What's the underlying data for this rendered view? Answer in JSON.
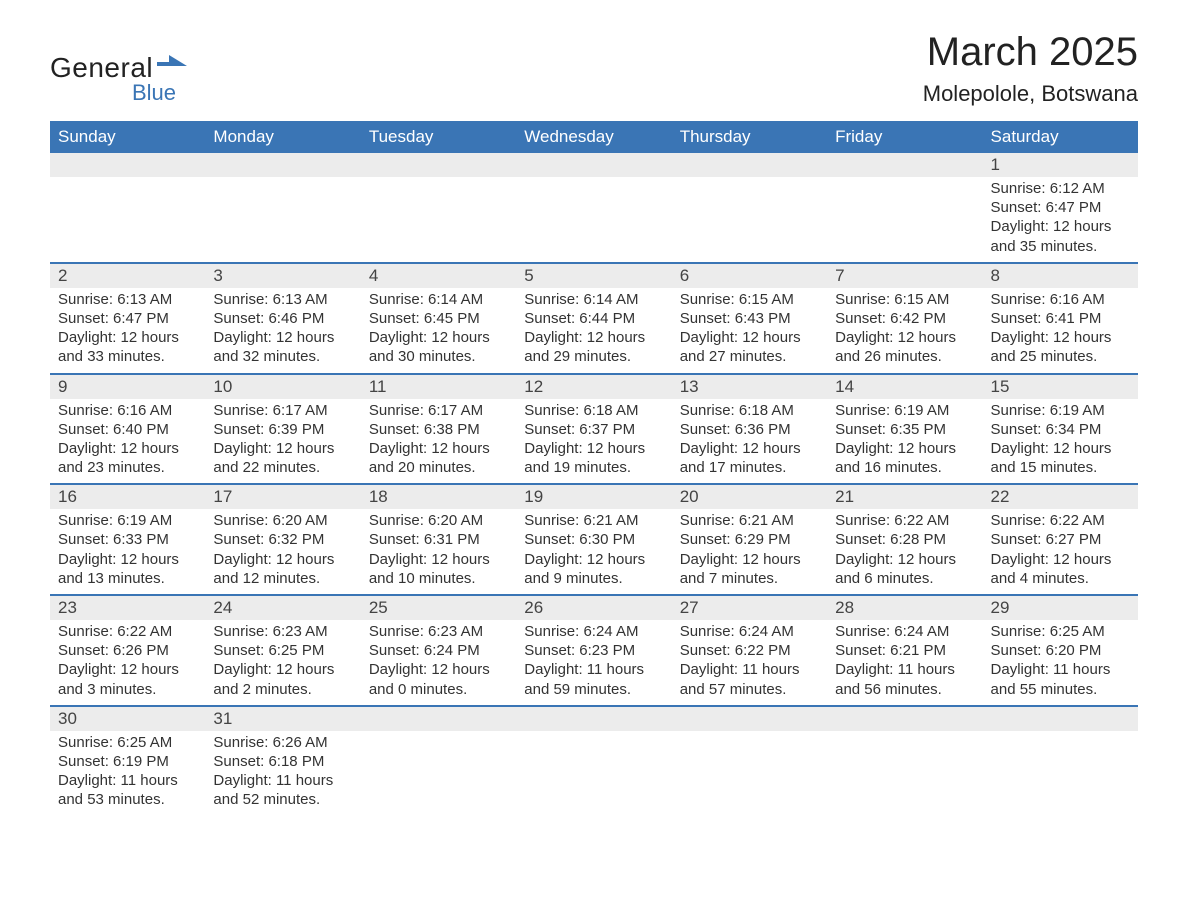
{
  "brand": {
    "line1": "General",
    "line2": "Blue",
    "flag_color": "#3a75b5"
  },
  "title": "March 2025",
  "location": "Molepolole, Botswana",
  "colors": {
    "header_bg": "#3a75b5",
    "header_fg": "#ffffff",
    "row_divider": "#3a75b5",
    "daynum_bg": "#ececec",
    "text": "#333333",
    "background": "#ffffff"
  },
  "typography": {
    "title_fontsize": 40,
    "location_fontsize": 22,
    "dow_fontsize": 17,
    "daynum_fontsize": 17,
    "body_fontsize": 15
  },
  "days_of_week": [
    "Sunday",
    "Monday",
    "Tuesday",
    "Wednesday",
    "Thursday",
    "Friday",
    "Saturday"
  ],
  "weeks": [
    [
      null,
      null,
      null,
      null,
      null,
      null,
      {
        "n": "1",
        "sunrise": "Sunrise: 6:12 AM",
        "sunset": "Sunset: 6:47 PM",
        "dl1": "Daylight: 12 hours",
        "dl2": "and 35 minutes."
      }
    ],
    [
      {
        "n": "2",
        "sunrise": "Sunrise: 6:13 AM",
        "sunset": "Sunset: 6:47 PM",
        "dl1": "Daylight: 12 hours",
        "dl2": "and 33 minutes."
      },
      {
        "n": "3",
        "sunrise": "Sunrise: 6:13 AM",
        "sunset": "Sunset: 6:46 PM",
        "dl1": "Daylight: 12 hours",
        "dl2": "and 32 minutes."
      },
      {
        "n": "4",
        "sunrise": "Sunrise: 6:14 AM",
        "sunset": "Sunset: 6:45 PM",
        "dl1": "Daylight: 12 hours",
        "dl2": "and 30 minutes."
      },
      {
        "n": "5",
        "sunrise": "Sunrise: 6:14 AM",
        "sunset": "Sunset: 6:44 PM",
        "dl1": "Daylight: 12 hours",
        "dl2": "and 29 minutes."
      },
      {
        "n": "6",
        "sunrise": "Sunrise: 6:15 AM",
        "sunset": "Sunset: 6:43 PM",
        "dl1": "Daylight: 12 hours",
        "dl2": "and 27 minutes."
      },
      {
        "n": "7",
        "sunrise": "Sunrise: 6:15 AM",
        "sunset": "Sunset: 6:42 PM",
        "dl1": "Daylight: 12 hours",
        "dl2": "and 26 minutes."
      },
      {
        "n": "8",
        "sunrise": "Sunrise: 6:16 AM",
        "sunset": "Sunset: 6:41 PM",
        "dl1": "Daylight: 12 hours",
        "dl2": "and 25 minutes."
      }
    ],
    [
      {
        "n": "9",
        "sunrise": "Sunrise: 6:16 AM",
        "sunset": "Sunset: 6:40 PM",
        "dl1": "Daylight: 12 hours",
        "dl2": "and 23 minutes."
      },
      {
        "n": "10",
        "sunrise": "Sunrise: 6:17 AM",
        "sunset": "Sunset: 6:39 PM",
        "dl1": "Daylight: 12 hours",
        "dl2": "and 22 minutes."
      },
      {
        "n": "11",
        "sunrise": "Sunrise: 6:17 AM",
        "sunset": "Sunset: 6:38 PM",
        "dl1": "Daylight: 12 hours",
        "dl2": "and 20 minutes."
      },
      {
        "n": "12",
        "sunrise": "Sunrise: 6:18 AM",
        "sunset": "Sunset: 6:37 PM",
        "dl1": "Daylight: 12 hours",
        "dl2": "and 19 minutes."
      },
      {
        "n": "13",
        "sunrise": "Sunrise: 6:18 AM",
        "sunset": "Sunset: 6:36 PM",
        "dl1": "Daylight: 12 hours",
        "dl2": "and 17 minutes."
      },
      {
        "n": "14",
        "sunrise": "Sunrise: 6:19 AM",
        "sunset": "Sunset: 6:35 PM",
        "dl1": "Daylight: 12 hours",
        "dl2": "and 16 minutes."
      },
      {
        "n": "15",
        "sunrise": "Sunrise: 6:19 AM",
        "sunset": "Sunset: 6:34 PM",
        "dl1": "Daylight: 12 hours",
        "dl2": "and 15 minutes."
      }
    ],
    [
      {
        "n": "16",
        "sunrise": "Sunrise: 6:19 AM",
        "sunset": "Sunset: 6:33 PM",
        "dl1": "Daylight: 12 hours",
        "dl2": "and 13 minutes."
      },
      {
        "n": "17",
        "sunrise": "Sunrise: 6:20 AM",
        "sunset": "Sunset: 6:32 PM",
        "dl1": "Daylight: 12 hours",
        "dl2": "and 12 minutes."
      },
      {
        "n": "18",
        "sunrise": "Sunrise: 6:20 AM",
        "sunset": "Sunset: 6:31 PM",
        "dl1": "Daylight: 12 hours",
        "dl2": "and 10 minutes."
      },
      {
        "n": "19",
        "sunrise": "Sunrise: 6:21 AM",
        "sunset": "Sunset: 6:30 PM",
        "dl1": "Daylight: 12 hours",
        "dl2": "and 9 minutes."
      },
      {
        "n": "20",
        "sunrise": "Sunrise: 6:21 AM",
        "sunset": "Sunset: 6:29 PM",
        "dl1": "Daylight: 12 hours",
        "dl2": "and 7 minutes."
      },
      {
        "n": "21",
        "sunrise": "Sunrise: 6:22 AM",
        "sunset": "Sunset: 6:28 PM",
        "dl1": "Daylight: 12 hours",
        "dl2": "and 6 minutes."
      },
      {
        "n": "22",
        "sunrise": "Sunrise: 6:22 AM",
        "sunset": "Sunset: 6:27 PM",
        "dl1": "Daylight: 12 hours",
        "dl2": "and 4 minutes."
      }
    ],
    [
      {
        "n": "23",
        "sunrise": "Sunrise: 6:22 AM",
        "sunset": "Sunset: 6:26 PM",
        "dl1": "Daylight: 12 hours",
        "dl2": "and 3 minutes."
      },
      {
        "n": "24",
        "sunrise": "Sunrise: 6:23 AM",
        "sunset": "Sunset: 6:25 PM",
        "dl1": "Daylight: 12 hours",
        "dl2": "and 2 minutes."
      },
      {
        "n": "25",
        "sunrise": "Sunrise: 6:23 AM",
        "sunset": "Sunset: 6:24 PM",
        "dl1": "Daylight: 12 hours",
        "dl2": "and 0 minutes."
      },
      {
        "n": "26",
        "sunrise": "Sunrise: 6:24 AM",
        "sunset": "Sunset: 6:23 PM",
        "dl1": "Daylight: 11 hours",
        "dl2": "and 59 minutes."
      },
      {
        "n": "27",
        "sunrise": "Sunrise: 6:24 AM",
        "sunset": "Sunset: 6:22 PM",
        "dl1": "Daylight: 11 hours",
        "dl2": "and 57 minutes."
      },
      {
        "n": "28",
        "sunrise": "Sunrise: 6:24 AM",
        "sunset": "Sunset: 6:21 PM",
        "dl1": "Daylight: 11 hours",
        "dl2": "and 56 minutes."
      },
      {
        "n": "29",
        "sunrise": "Sunrise: 6:25 AM",
        "sunset": "Sunset: 6:20 PM",
        "dl1": "Daylight: 11 hours",
        "dl2": "and 55 minutes."
      }
    ],
    [
      {
        "n": "30",
        "sunrise": "Sunrise: 6:25 AM",
        "sunset": "Sunset: 6:19 PM",
        "dl1": "Daylight: 11 hours",
        "dl2": "and 53 minutes."
      },
      {
        "n": "31",
        "sunrise": "Sunrise: 6:26 AM",
        "sunset": "Sunset: 6:18 PM",
        "dl1": "Daylight: 11 hours",
        "dl2": "and 52 minutes."
      },
      null,
      null,
      null,
      null,
      null
    ]
  ]
}
